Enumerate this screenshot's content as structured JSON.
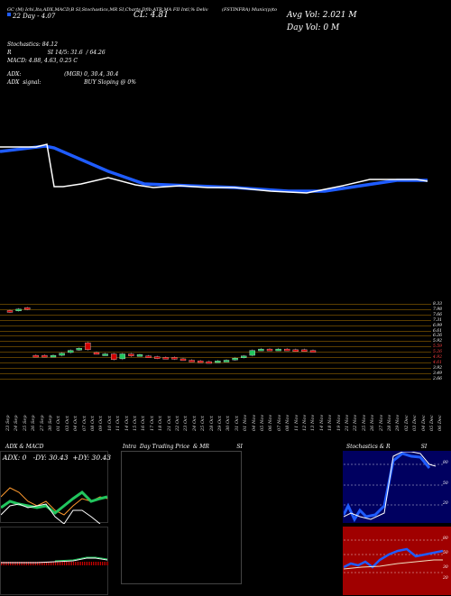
{
  "header": {
    "left_top": "GC (M) Ichi,Ita,ADX,MACD,B SI,Stochastics,MR SI,Charts,Dfib,ATR,MA FII Intl,% Deliv",
    "symbol_line": "(FSTINFRA) Munic(p)to",
    "date_line": "22 Day - 4.07",
    "close": "CL: 4.81",
    "avg_vol": "Avg Vol: 2.021 M",
    "day_vol": "Day Vol: 0 M"
  },
  "stats": {
    "stochastics": "Stochastics: 84.12",
    "r_line": "R                     SI 14/5: 31.6  / 64.26",
    "macd": "MACD: 4.88, 4.63, 0.25 C",
    "adx": "ADX:                         (MGR) 0, 30.4, 30.4",
    "adx_signal": "ADX  signal:                         BUY Sloping @ 0%"
  },
  "price_ticks": [
    "8.33",
    "7.98",
    "7.66",
    "7.31",
    "6.99",
    "6.61",
    "6.26",
    "5.92",
    "5.59",
    "5.26",
    "4.92",
    "4.61",
    "3.92",
    "3.49",
    "2.66"
  ],
  "dates": [
    "23 Sep",
    "24 Sep",
    "25 Sep",
    "26 Sep",
    "27 Sep",
    "30 Sep",
    "01 Oct",
    "03 Oct",
    "04 Oct",
    "07 Oct",
    "08 Oct",
    "09 Oct",
    "10 Oct",
    "11 Oct",
    "14 Oct",
    "15 Oct",
    "16 Oct",
    "17 Oct",
    "18 Oct",
    "21 Oct",
    "22 Oct",
    "23 Oct",
    "24 Oct",
    "25 Oct",
    "28 Oct",
    "29 Oct",
    "30 Oct",
    "31 Oct",
    "01 Nov",
    "04 Nov",
    "05 Nov",
    "06 Nov",
    "07 Nov",
    "08 Nov",
    "11 Nov",
    "12 Nov",
    "13 Nov",
    "14 Nov",
    "18 Nov",
    "19 Nov",
    "21 Nov",
    "22 Nov",
    "25 Nov",
    "26 Nov",
    "27 Nov",
    "28 Nov",
    "29 Nov",
    "02 Dec",
    "03 Dec",
    "04 Dec",
    "05 Dec",
    "06 Dec"
  ],
  "panels": {
    "adx_title": "ADX  & MACD",
    "adx_values": "ADX: 0   -DY: 30.43  +DY: 30.43",
    "intraday_title": "Intra  Day Trading Price  & MR                SI",
    "stoch_title": "Stochastics & R                  SI",
    "stoch_ticks": [
      "80",
      "50",
      "20"
    ],
    "rsi_ticks": [
      "80",
      "50",
      "30",
      "20"
    ]
  },
  "colors": {
    "background": "#000000",
    "blue_line": "#1f5cff",
    "green": "#22c55e",
    "red": "#d10000",
    "orange": "#ff9a2e",
    "navy_panel": "#000060",
    "rsi_panel": "#a00000"
  },
  "chart_data": {
    "type": "line",
    "series": [
      {
        "name": "",
        "values": [
          4.9,
          4.9,
          4.95,
          5.05,
          5.05,
          4.45,
          4.4,
          4.45,
          4.5,
          4.55,
          4.6,
          4.55,
          4.45,
          4.38,
          4.4,
          4.42,
          4.4,
          4.35,
          4.3,
          4.28,
          4.3,
          4.38,
          4.45,
          4.5,
          4.55,
          4.56,
          4.56,
          4.56,
          4.55,
          4.55
        ]
      }
    ],
    "candles": [
      {
        "o": 7.6,
        "c": 7.5,
        "up": false
      },
      {
        "o": 7.6,
        "c": 7.7,
        "up": true
      },
      {
        "o": 7.8,
        "c": 7.7,
        "up": false
      },
      {
        "o": 4.4,
        "c": 4.4,
        "up": false
      },
      {
        "o": 4.4,
        "c": 4.35,
        "up": false
      },
      {
        "o": 4.35,
        "c": 4.4,
        "up": true
      },
      {
        "o": 4.4,
        "c": 4.55,
        "up": true
      },
      {
        "o": 4.6,
        "c": 4.75,
        "up": true
      },
      {
        "o": 4.8,
        "c": 4.9,
        "up": true
      },
      {
        "o": 5.3,
        "c": 4.8,
        "up": false
      },
      {
        "o": 4.6,
        "c": 4.6,
        "up": false
      },
      {
        "o": 4.45,
        "c": 4.5,
        "up": true
      },
      {
        "o": 4.5,
        "c": 4.1,
        "up": false
      },
      {
        "o": 4.15,
        "c": 4.5,
        "up": true
      },
      {
        "o": 4.5,
        "c": 4.35,
        "up": false
      },
      {
        "o": 4.4,
        "c": 4.45,
        "up": true
      },
      {
        "o": 4.35,
        "c": 4.3,
        "up": false
      },
      {
        "o": 4.3,
        "c": 4.2,
        "up": false
      },
      {
        "o": 4.25,
        "c": 4.25,
        "up": false
      },
      {
        "o": 4.25,
        "c": 4.15,
        "up": false
      },
      {
        "o": 4.15,
        "c": 4.1,
        "up": false
      },
      {
        "o": 4.05,
        "c": 4.0,
        "up": false
      },
      {
        "o": 4.0,
        "c": 3.95,
        "up": false
      },
      {
        "o": 3.95,
        "c": 3.95,
        "up": false
      },
      {
        "o": 3.95,
        "c": 4.0,
        "up": true
      },
      {
        "o": 4.0,
        "c": 4.05,
        "up": true
      },
      {
        "o": 4.1,
        "c": 4.2,
        "up": true
      },
      {
        "o": 4.25,
        "c": 4.35,
        "up": true
      },
      {
        "o": 4.4,
        "c": 4.75,
        "up": true
      },
      {
        "o": 4.8,
        "c": 4.85,
        "up": true
      },
      {
        "o": 4.85,
        "c": 4.8,
        "up": false
      },
      {
        "o": 4.8,
        "c": 4.85,
        "up": true
      },
      {
        "o": 4.85,
        "c": 4.8,
        "up": false
      },
      {
        "o": 4.8,
        "c": 4.75,
        "up": false
      },
      {
        "o": 4.8,
        "c": 4.75,
        "up": false
      },
      {
        "o": 4.75,
        "c": 4.7,
        "up": false
      }
    ]
  }
}
